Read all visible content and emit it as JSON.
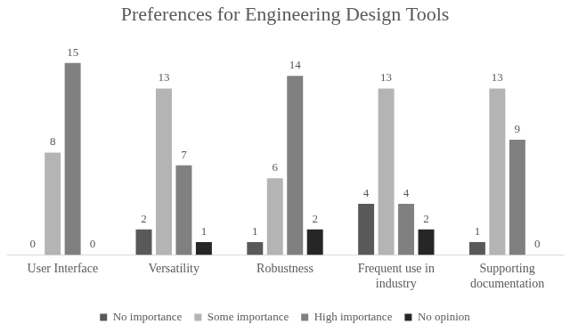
{
  "chart_data": {
    "type": "bar",
    "title": "Preferences for Engineering Design Tools",
    "categories": [
      "User Interface",
      "Versatility",
      "Robustness",
      "Frequent use in industry",
      "Supporting documentation"
    ],
    "series": [
      {
        "name": "No importance",
        "color": "#595959",
        "values": [
          0,
          2,
          1,
          4,
          1
        ]
      },
      {
        "name": "Some importance",
        "color": "#b4b4b4",
        "values": [
          8,
          13,
          6,
          13,
          13
        ]
      },
      {
        "name": "High importance",
        "color": "#808080",
        "values": [
          15,
          7,
          14,
          4,
          9
        ]
      },
      {
        "name": "No opinion",
        "color": "#262626",
        "values": [
          0,
          1,
          2,
          2,
          0
        ]
      }
    ],
    "ylim": [
      0,
      16
    ],
    "grid": false,
    "legend": "bottom",
    "data_labels": true,
    "tick_labels": "x"
  }
}
